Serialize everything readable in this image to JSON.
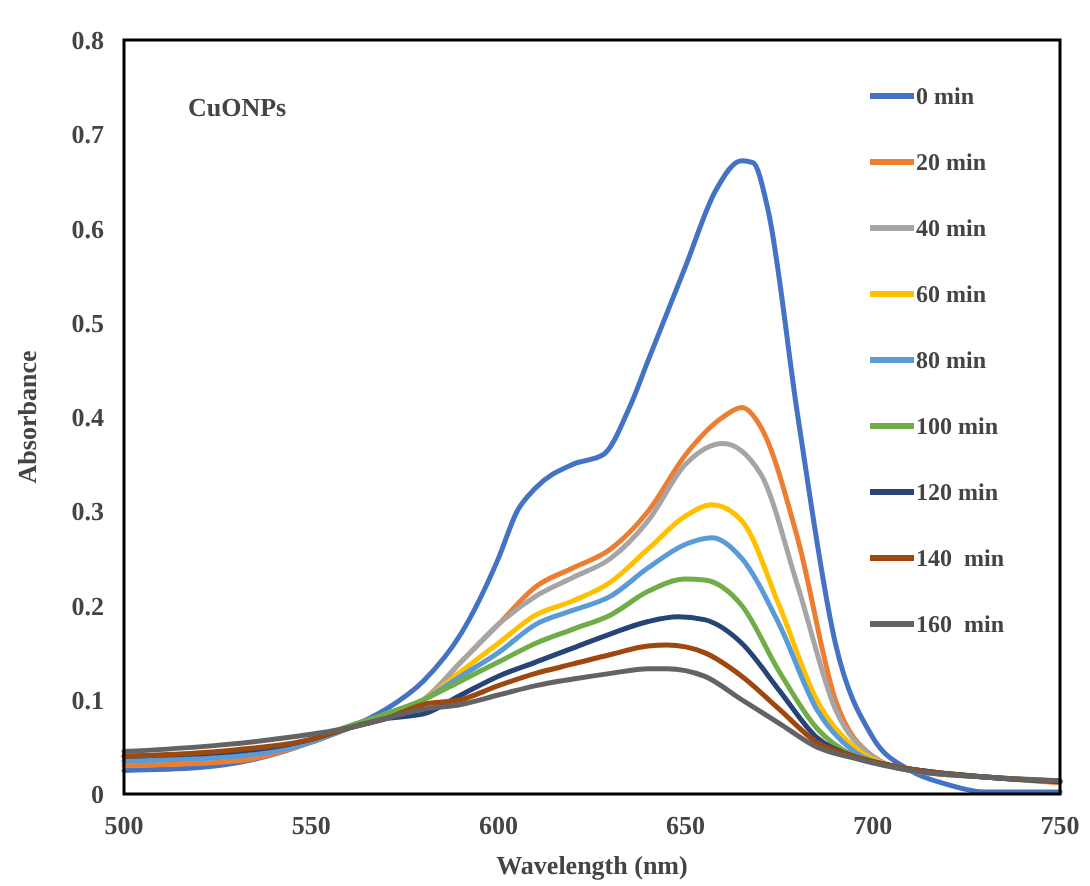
{
  "chart_data": {
    "type": "line",
    "xlabel": "Wavelength (nm)",
    "ylabel": "Absorbance",
    "annotations": [
      "CuONPs"
    ],
    "xlim": [
      500,
      750
    ],
    "ylim": [
      0,
      0.8
    ],
    "xticks": [
      500,
      550,
      600,
      650,
      700,
      750
    ],
    "yticks": [
      0,
      0.1,
      0.2,
      0.3,
      0.4,
      0.5,
      0.6,
      0.7,
      0.8
    ],
    "grid": false,
    "legend": "top right",
    "marker": "none",
    "line_style": "solid",
    "series": [
      {
        "name": "0 min",
        "color": "#4472c4",
        "x": [
          500,
          520,
          540,
          550,
          560,
          570,
          580,
          590,
          600,
          605,
          610,
          620,
          628,
          635,
          640,
          650,
          658,
          665,
          668,
          672,
          680,
          690,
          700,
          710,
          720,
          730,
          750
        ],
        "values": [
          0.025,
          0.028,
          0.042,
          0.055,
          0.07,
          0.09,
          0.12,
          0.17,
          0.25,
          0.3,
          0.325,
          0.35,
          0.36,
          0.41,
          0.46,
          0.56,
          0.64,
          0.672,
          0.67,
          0.62,
          0.4,
          0.16,
          0.06,
          0.025,
          0.01,
          0.002,
          0.002
        ]
      },
      {
        "name": "20 min",
        "color": "#ed7d31",
        "x": [
          500,
          530,
          550,
          560,
          570,
          580,
          590,
          600,
          610,
          620,
          630,
          640,
          650,
          660,
          665,
          670,
          680,
          690,
          700,
          710,
          730,
          750
        ],
        "values": [
          0.03,
          0.035,
          0.055,
          0.07,
          0.085,
          0.1,
          0.14,
          0.18,
          0.22,
          0.24,
          0.26,
          0.3,
          0.36,
          0.4,
          0.41,
          0.39,
          0.27,
          0.1,
          0.04,
          0.025,
          0.018,
          0.012
        ]
      },
      {
        "name": "40 min",
        "color": "#a5a5a5",
        "x": [
          500,
          530,
          550,
          560,
          570,
          580,
          590,
          600,
          610,
          620,
          630,
          640,
          650,
          660,
          670,
          680,
          690,
          700,
          710,
          730,
          750
        ],
        "values": [
          0.035,
          0.04,
          0.055,
          0.07,
          0.085,
          0.1,
          0.14,
          0.18,
          0.21,
          0.23,
          0.25,
          0.29,
          0.35,
          0.372,
          0.34,
          0.22,
          0.09,
          0.04,
          0.025,
          0.018,
          0.013
        ]
      },
      {
        "name": "60 min",
        "color": "#ffc000",
        "x": [
          570,
          580,
          590,
          600,
          610,
          620,
          630,
          640,
          650,
          657,
          665,
          675,
          685,
          695,
          705,
          730,
          750
        ],
        "values": [
          0.085,
          0.1,
          0.13,
          0.16,
          0.19,
          0.205,
          0.225,
          0.26,
          0.295,
          0.307,
          0.29,
          0.2,
          0.1,
          0.05,
          0.03,
          0.018,
          0.013
        ]
      },
      {
        "name": "80 min",
        "color": "#5b9bd5",
        "x": [
          500,
          530,
          550,
          560,
          570,
          580,
          590,
          600,
          610,
          620,
          630,
          640,
          650,
          657,
          665,
          675,
          685,
          695,
          705,
          730,
          750
        ],
        "values": [
          0.035,
          0.04,
          0.055,
          0.07,
          0.085,
          0.1,
          0.125,
          0.15,
          0.18,
          0.195,
          0.21,
          0.24,
          0.265,
          0.272,
          0.25,
          0.18,
          0.09,
          0.045,
          0.03,
          0.018,
          0.013
        ]
      },
      {
        "name": "100 min",
        "color": "#70ad47",
        "x": [
          550,
          560,
          570,
          580,
          590,
          600,
          610,
          620,
          630,
          640,
          650,
          655,
          665,
          675,
          685,
          695,
          705,
          730,
          750
        ],
        "values": [
          0.058,
          0.072,
          0.085,
          0.1,
          0.12,
          0.14,
          0.16,
          0.175,
          0.19,
          0.215,
          0.228,
          0.227,
          0.2,
          0.13,
          0.07,
          0.04,
          0.03,
          0.018,
          0.013
        ]
      },
      {
        "name": "120 min",
        "color": "#264478",
        "x": [
          500,
          530,
          550,
          560,
          570,
          580,
          590,
          600,
          610,
          620,
          630,
          640,
          648,
          655,
          665,
          675,
          685,
          695,
          705,
          730,
          750
        ],
        "values": [
          0.04,
          0.045,
          0.058,
          0.07,
          0.08,
          0.085,
          0.105,
          0.125,
          0.14,
          0.155,
          0.17,
          0.183,
          0.188,
          0.185,
          0.16,
          0.11,
          0.06,
          0.04,
          0.03,
          0.018,
          0.013
        ]
      },
      {
        "name": "140  min",
        "color": "#9e480e",
        "x": [
          500,
          530,
          550,
          560,
          570,
          580,
          590,
          600,
          610,
          620,
          630,
          640,
          645,
          655,
          665,
          675,
          685,
          695,
          705,
          730,
          750
        ],
        "values": [
          0.04,
          0.047,
          0.058,
          0.07,
          0.08,
          0.095,
          0.1,
          0.115,
          0.128,
          0.138,
          0.148,
          0.157,
          0.158,
          0.15,
          0.125,
          0.09,
          0.055,
          0.04,
          0.03,
          0.018,
          0.014
        ]
      },
      {
        "name": "160  min",
        "color": "#636363",
        "x": [
          500,
          520,
          540,
          560,
          580,
          590,
          600,
          610,
          620,
          630,
          640,
          645,
          655,
          665,
          675,
          685,
          695,
          710,
          730,
          750
        ],
        "values": [
          0.045,
          0.05,
          0.058,
          0.07,
          0.09,
          0.095,
          0.105,
          0.115,
          0.122,
          0.128,
          0.133,
          0.133,
          0.125,
          0.1,
          0.075,
          0.05,
          0.038,
          0.025,
          0.018,
          0.014
        ]
      }
    ]
  }
}
